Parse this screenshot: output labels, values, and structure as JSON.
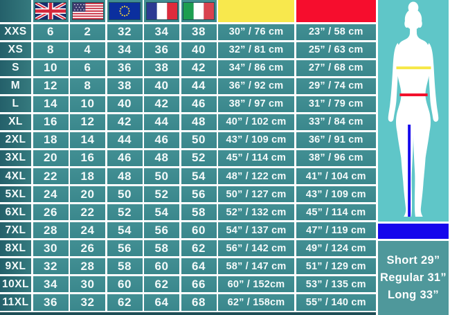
{
  "chart_data": {
    "type": "table",
    "title": "Clothing size conversion and measurement chart",
    "columns": [
      "size",
      "uk-flag",
      "us-flag",
      "eu-flag",
      "france-flag",
      "italy-flag",
      "chest-yellow",
      "waist-red"
    ],
    "rows": [
      {
        "size": "XXS",
        "uk": "6",
        "us": "2",
        "eu": "32",
        "fr": "34",
        "it": "38",
        "chest": "30” / 76 cm",
        "waist": "23” / 58 cm"
      },
      {
        "size": "XS",
        "uk": "8",
        "us": "4",
        "eu": "34",
        "fr": "36",
        "it": "40",
        "chest": "32” / 81 cm",
        "waist": "25” / 63 cm"
      },
      {
        "size": "S",
        "uk": "10",
        "us": "6",
        "eu": "36",
        "fr": "38",
        "it": "42",
        "chest": "34” / 86 cm",
        "waist": "27” / 68 cm"
      },
      {
        "size": "M",
        "uk": "12",
        "us": "8",
        "eu": "38",
        "fr": "40",
        "it": "44",
        "chest": "36” / 92 cm",
        "waist": "29” / 74 cm"
      },
      {
        "size": "L",
        "uk": "14",
        "us": "10",
        "eu": "40",
        "fr": "42",
        "it": "46",
        "chest": "38” / 97 cm",
        "waist": "31” / 79 cm"
      },
      {
        "size": "XL",
        "uk": "16",
        "us": "12",
        "eu": "42",
        "fr": "44",
        "it": "48",
        "chest": "40” / 102 cm",
        "waist": "33” / 84 cm"
      },
      {
        "size": "2XL",
        "uk": "18",
        "us": "14",
        "eu": "44",
        "fr": "46",
        "it": "50",
        "chest": "43” / 109 cm",
        "waist": "36” / 91 cm"
      },
      {
        "size": "3XL",
        "uk": "20",
        "us": "16",
        "eu": "46",
        "fr": "48",
        "it": "52",
        "chest": "45” / 114 cm",
        "waist": "38” / 96 cm"
      },
      {
        "size": "4XL",
        "uk": "22",
        "us": "18",
        "eu": "48",
        "fr": "50",
        "it": "54",
        "chest": "48” / 122 cm",
        "waist": "41” / 104 cm"
      },
      {
        "size": "5XL",
        "uk": "24",
        "us": "20",
        "eu": "50",
        "fr": "52",
        "it": "56",
        "chest": "50” / 127 cm",
        "waist": "43” / 109 cm"
      },
      {
        "size": "6XL",
        "uk": "26",
        "us": "22",
        "eu": "52",
        "fr": "54",
        "it": "58",
        "chest": "52” / 132 cm",
        "waist": "45” / 114 cm"
      },
      {
        "size": "7XL",
        "uk": "28",
        "us": "24",
        "eu": "54",
        "fr": "56",
        "it": "60",
        "chest": "54” / 137 cm",
        "waist": "47” / 119 cm"
      },
      {
        "size": "8XL",
        "uk": "30",
        "us": "26",
        "eu": "56",
        "fr": "58",
        "it": "62",
        "chest": "56” / 142 cm",
        "waist": "49” / 124 cm"
      },
      {
        "size": "9XL",
        "uk": "32",
        "us": "28",
        "eu": "58",
        "fr": "60",
        "it": "64",
        "chest": "58” / 147 cm",
        "waist": "51” / 129 cm"
      },
      {
        "size": "10XL",
        "uk": "34",
        "us": "30",
        "eu": "60",
        "fr": "62",
        "it": "66",
        "chest": "60” / 152cm",
        "waist": "53” / 135 cm"
      },
      {
        "size": "11XL",
        "uk": "36",
        "us": "32",
        "eu": "62",
        "fr": "64",
        "it": "68",
        "chest": "62” / 158cm",
        "waist": "55” / 140 cm"
      }
    ]
  },
  "header": {
    "flags": [
      "uk-flag",
      "us-flag",
      "eu-flag",
      "france-flag",
      "italy-flag"
    ],
    "chest_color": "#f8e84d",
    "waist_color": "#f60d2d"
  },
  "side_panel": {
    "figure_icon": "female-body-silhouette-icon",
    "measure_lines": {
      "chest": "#f6e84a",
      "waist": "#f2122d",
      "inseam": "#1606ec"
    },
    "lengths": [
      "Short 29”",
      "Regular 31”",
      "Long 33”"
    ]
  },
  "colors": {
    "cell_teal": "#3e8c90",
    "label_teal_dark": "#24606a",
    "panel_turquoise": "#5fc6c8",
    "length_panel_teal": "#4f989b",
    "divider_blue": "#1606ec",
    "grid_line": "#ffffff"
  }
}
